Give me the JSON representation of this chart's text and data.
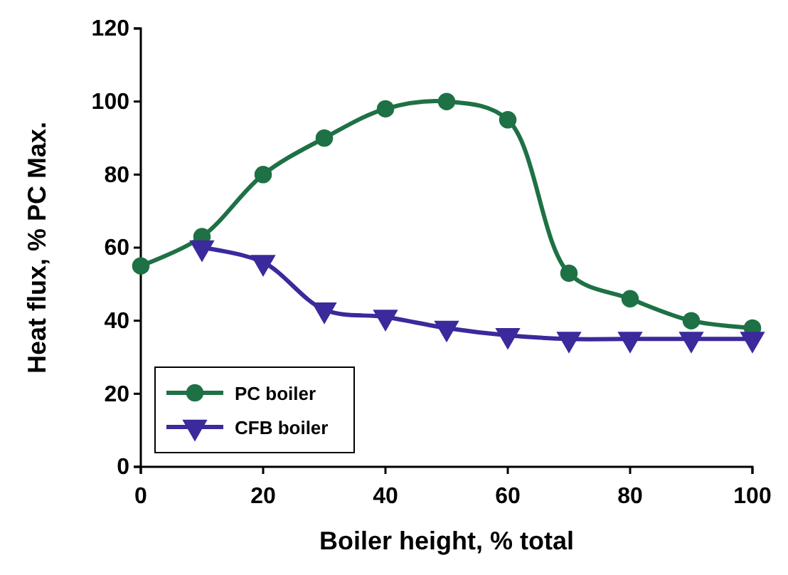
{
  "chart_data": {
    "type": "line",
    "xlabel": "Boiler height, % total",
    "ylabel": "Heat flux, % PC Max.",
    "xlim": [
      0,
      100
    ],
    "xticks": [
      0,
      20,
      40,
      60,
      80,
      100
    ],
    "ylim": [
      0,
      120
    ],
    "yticks": [
      0,
      20,
      40,
      60,
      80,
      100,
      120
    ],
    "grid": false,
    "legend": "bottom left",
    "line_style": "solid",
    "series": [
      {
        "name": "PC boiler",
        "color": "#1e7145",
        "marker": "circle",
        "x": [
          0,
          10,
          20,
          30,
          40,
          50,
          60,
          70,
          80,
          90,
          100
        ],
        "values": [
          55,
          63,
          80,
          90,
          98,
          100,
          95,
          53,
          46,
          40,
          38
        ]
      },
      {
        "name": "CFB boiler",
        "color": "#3a2a9c",
        "marker": "triangle",
        "x": [
          10,
          20,
          30,
          40,
          50,
          60,
          70,
          80,
          90,
          100
        ],
        "values": [
          60,
          56,
          43,
          41,
          38,
          36,
          35,
          35,
          35,
          35
        ]
      }
    ]
  }
}
